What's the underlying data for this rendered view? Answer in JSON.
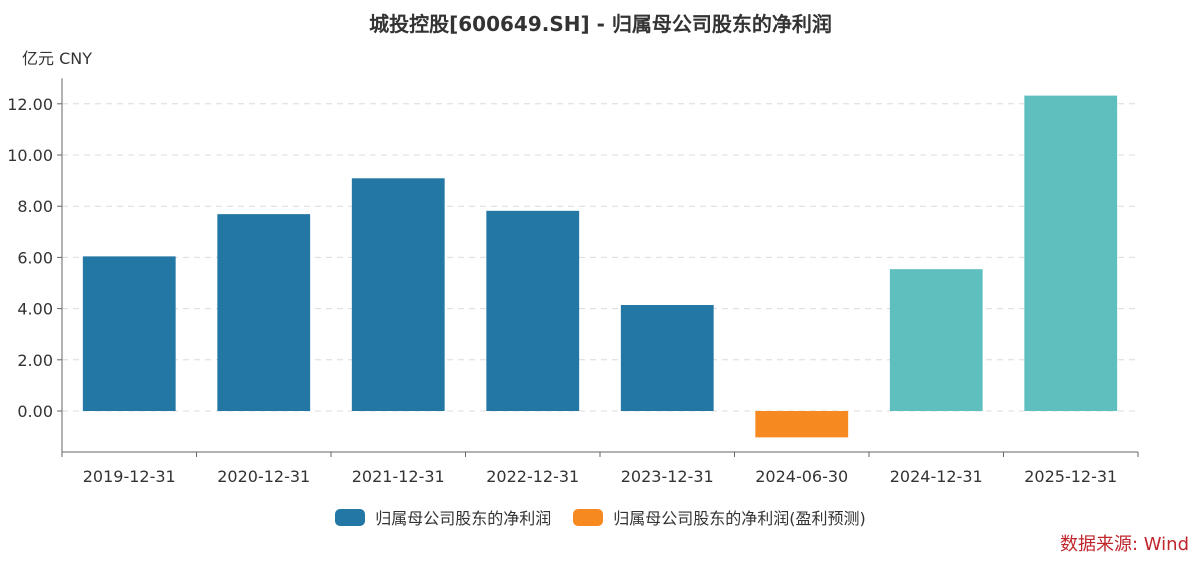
{
  "chart_data": {
    "type": "bar",
    "title": "城投控股[600649.SH] - 归属母公司股东的净利润",
    "unit": "亿元  CNY",
    "categories": [
      "2019-12-31",
      "2020-12-31",
      "2021-12-31",
      "2022-12-31",
      "2023-12-31",
      "2024-06-30",
      "2024-12-31",
      "2025-12-31"
    ],
    "values": [
      6.04,
      7.69,
      9.09,
      7.82,
      4.14,
      -1.03,
      5.54,
      12.32
    ],
    "bar_colors": [
      "#2377a4",
      "#2377a4",
      "#2377a4",
      "#2377a4",
      "#2377a4",
      "#f6891f",
      "#5fbfbf",
      "#5fbfbf"
    ],
    "ylim": [
      -1.6,
      13.0
    ],
    "yticks": [
      0,
      2,
      4,
      6,
      8,
      10,
      12
    ],
    "ytick_labels": [
      "0.00",
      "2.00",
      "4.00",
      "6.00",
      "8.00",
      "10.00",
      "12.00"
    ],
    "grid": true,
    "legend_position": "bottom-center",
    "legend": [
      {
        "name": "归属母公司股东的净利润",
        "color": "#2377a4"
      },
      {
        "name": "归属母公司股东的净利润(盈利预测)",
        "color": "#f6891f"
      }
    ]
  },
  "source": "数据来源: Wind"
}
